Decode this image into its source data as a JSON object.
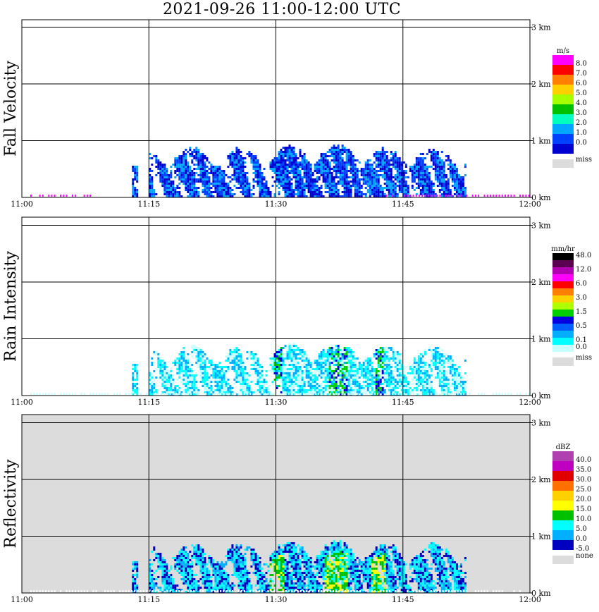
{
  "title": "2021-09-26   11:00-12:00 UTC",
  "x_ticks": [
    "11:00",
    "11:15",
    "11:30",
    "11:45",
    "12:00"
  ],
  "y_ticks": [
    "0 km",
    "1 km",
    "2 km",
    "3 km"
  ],
  "panels": [
    {
      "id": "fall",
      "ylabel": "Fall Velocity",
      "unit": "m/s",
      "background": "#ffffff",
      "legend": [
        {
          "label": "8.0",
          "color": "#ff00ff"
        },
        {
          "label": "7.0",
          "color": "#ff0000"
        },
        {
          "label": "6.0",
          "color": "#ff7f00"
        },
        {
          "label": "5.0",
          "color": "#ffd000"
        },
        {
          "label": "4.0",
          "color": "#a6ff00"
        },
        {
          "label": "3.0",
          "color": "#00c000"
        },
        {
          "label": "2.0",
          "color": "#00ffbf"
        },
        {
          "label": "1.0",
          "color": "#00a6ff"
        },
        {
          "label": "0.0",
          "color": "#0040ff"
        },
        {
          "label": "",
          "color": "#0000d0"
        }
      ],
      "missing_label": "miss",
      "missing_color": "#dcdcdc"
    },
    {
      "id": "rain",
      "ylabel": "Rain Intensity",
      "unit": "mm/hr",
      "background": "#ffffff",
      "legend": [
        {
          "label": "48.0",
          "color": "#000000"
        },
        {
          "label": "",
          "color": "#5a0050"
        },
        {
          "label": "12.0",
          "color": "#b000b0"
        },
        {
          "label": "",
          "color": "#ff00ff"
        },
        {
          "label": "6.0",
          "color": "#ff0000"
        },
        {
          "label": "",
          "color": "#ff7f00"
        },
        {
          "label": "3.0",
          "color": "#ffd000"
        },
        {
          "label": "",
          "color": "#b0ff00"
        },
        {
          "label": "1.5",
          "color": "#00d000"
        },
        {
          "label": "",
          "color": "#0000e0"
        },
        {
          "label": "0.5",
          "color": "#0060ff"
        },
        {
          "label": "",
          "color": "#00b0ff"
        },
        {
          "label": "0.1",
          "color": "#00ffff"
        },
        {
          "label": "0.0",
          "color": "#c8ffff"
        }
      ],
      "missing_label": "miss",
      "missing_color": "#dcdcdc"
    },
    {
      "id": "refl",
      "ylabel": "Reflectivity",
      "unit": "dBZ",
      "background": "#dcdcdc",
      "legend": [
        {
          "label": "40.0",
          "color": "#b040b0"
        },
        {
          "label": "35.0",
          "color": "#c000c0"
        },
        {
          "label": "30.0",
          "color": "#e00000"
        },
        {
          "label": "25.0",
          "color": "#ff7000"
        },
        {
          "label": "20.0",
          "color": "#ffd000"
        },
        {
          "label": "15.0",
          "color": "#ffff00"
        },
        {
          "label": "10.0",
          "color": "#00c000"
        },
        {
          "label": "5.0",
          "color": "#00ffff"
        },
        {
          "label": "0.0",
          "color": "#00b0ff"
        },
        {
          "label": "-5.0",
          "color": "#0000c0"
        }
      ],
      "missing_label": "none",
      "missing_color": "#dcdcdc"
    }
  ],
  "chart_data": {
    "type": "heatmap",
    "title": "2021-09-26   11:00-12:00 UTC",
    "x_range": [
      "11:00",
      "12:00"
    ],
    "y_range_km": [
      0,
      3.25
    ],
    "y_unit": "km",
    "grid": true,
    "echo_top_km": 0.85,
    "precip_periods": [
      [
        "11:13",
        "11:14"
      ],
      [
        "11:15",
        "11:52"
      ]
    ],
    "max_rain_time": "11:37",
    "series": [
      {
        "name": "Fall Velocity",
        "unit": "m/s",
        "range": [
          0,
          8
        ]
      },
      {
        "name": "Rain Intensity",
        "unit": "mm/hr",
        "range": [
          0,
          48
        ]
      },
      {
        "name": "Reflectivity",
        "unit": "dBZ",
        "range": [
          -5,
          40
        ]
      }
    ]
  }
}
